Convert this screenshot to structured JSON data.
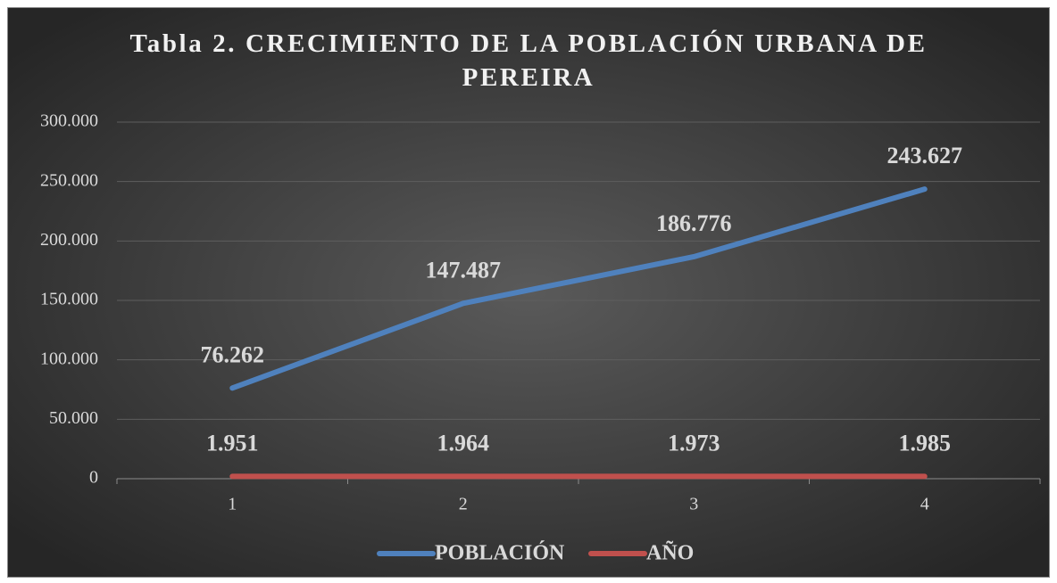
{
  "chart_data": {
    "type": "line",
    "title": "Tabla 2. CRECIMIENTO DE LA POBLACIÓN URBANA DE PEREIRA",
    "categories": [
      1,
      2,
      3,
      4
    ],
    "series": [
      {
        "name": "POBLACIÓN",
        "color": "#4f81bd",
        "values": [
          76262,
          147487,
          186776,
          243627
        ],
        "value_labels": [
          "76.262",
          "147.487",
          "186.776",
          "243.627"
        ]
      },
      {
        "name": "AÑO",
        "color": "#c0504d",
        "values": [
          1951,
          1964,
          1973,
          1985
        ],
        "value_labels": [
          "1.951",
          "1.964",
          "1.973",
          "1.985"
        ]
      }
    ],
    "ylim": [
      0,
      300000
    ],
    "yticks": [
      0,
      {
        "value": 50000,
        "label": "50.000"
      },
      {
        "value": 100000,
        "label": "100.000"
      },
      {
        "value": 150000,
        "label": "150.000"
      },
      {
        "value": 200000,
        "label": "200.000"
      },
      {
        "value": 250000,
        "label": "250.000"
      },
      {
        "value": 300000,
        "label": "300.000"
      }
    ],
    "grid": true,
    "legend": "bottom"
  }
}
